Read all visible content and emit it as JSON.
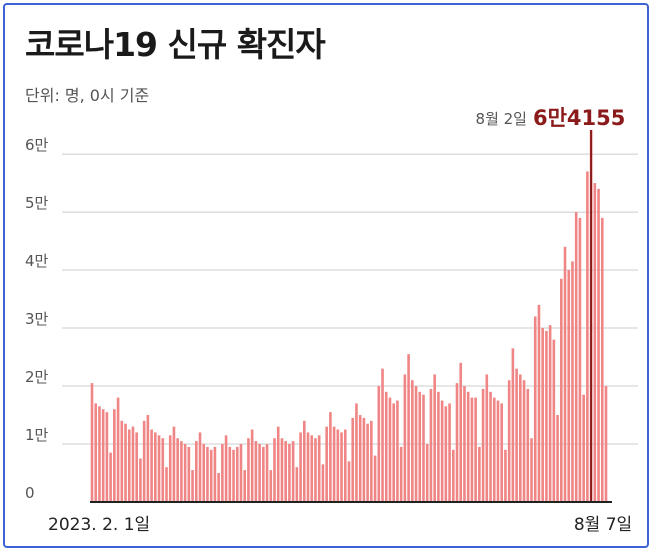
{
  "title": "코로나19 신규 확진자",
  "unit_note": "단위: 명, 0시 기준",
  "colors": {
    "bar": "#f08585",
    "peak": "#8b1a1a",
    "grid": "#cccccc"
  },
  "chart_data": {
    "type": "bar",
    "title": "코로나19 신규 확진자",
    "ylim": [
      0,
      64155
    ],
    "ytick_values": [
      0,
      10000,
      20000,
      30000,
      40000,
      50000,
      60000
    ],
    "ytick_labels": [
      "0",
      "1만",
      "2만",
      "3만",
      "4만",
      "5만",
      "6만"
    ],
    "x_start_label": "2023. 2. 1일",
    "x_end_label": "8월 7일",
    "annotation": {
      "date": "8월 2일",
      "value": 64155,
      "value_label": "6만4155"
    },
    "grid": true,
    "values": [
      20500,
      17000,
      16500,
      16000,
      15500,
      8500,
      16000,
      18000,
      14000,
      13500,
      12500,
      13000,
      12000,
      7500,
      14000,
      15000,
      12500,
      12000,
      11500,
      11000,
      6000,
      11500,
      13000,
      11000,
      10500,
      10000,
      9500,
      5500,
      10500,
      12000,
      10000,
      9500,
      9000,
      9500,
      5000,
      10000,
      11500,
      9500,
      9000,
      9500,
      10000,
      5500,
      11000,
      12500,
      10500,
      10000,
      9500,
      10000,
      5500,
      11000,
      13000,
      11000,
      10500,
      10000,
      10500,
      6000,
      12000,
      14000,
      12000,
      11500,
      11000,
      11500,
      6500,
      13000,
      15500,
      13000,
      12500,
      12000,
      12500,
      7000,
      14500,
      17000,
      15000,
      14500,
      13500,
      14000,
      8000,
      20000,
      23000,
      19000,
      18000,
      17000,
      17500,
      9500,
      22000,
      25500,
      21000,
      20000,
      19000,
      18500,
      10000,
      19500,
      22000,
      19000,
      17500,
      16500,
      17000,
      9000,
      20500,
      24000,
      20000,
      19000,
      18000,
      18000,
      9500,
      19500,
      22000,
      19000,
      18000,
      17500,
      17000,
      9000,
      21000,
      26500,
      23000,
      22000,
      21000,
      19500,
      11000,
      32000,
      34000,
      30000,
      29500,
      30500,
      28000,
      15000,
      38500,
      44000,
      40000,
      41500,
      50000,
      49000,
      18500,
      57000,
      64155,
      55000,
      54000,
      49000,
      20000
    ]
  }
}
